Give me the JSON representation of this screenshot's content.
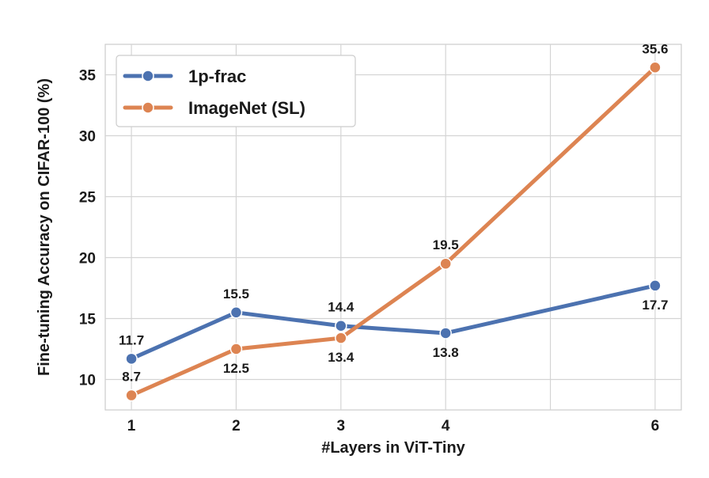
{
  "chart_data": {
    "type": "line",
    "xlabel": "#Layers in ViT-Tiny",
    "ylabel": "Fine-tuning Accuracy on CIFAR-100 (%)",
    "x": [
      1,
      2,
      3,
      4,
      6
    ],
    "xlim": [
      0.75,
      6.25
    ],
    "ylim": [
      7.5,
      37.5
    ],
    "xticks": [
      1,
      2,
      3,
      4,
      6
    ],
    "yticks": [
      10,
      15,
      20,
      25,
      30,
      35
    ],
    "grid": true,
    "legend_position": "top-left",
    "series": [
      {
        "name": "1p-frac",
        "color": "#4c72b0",
        "values": [
          11.7,
          15.5,
          14.4,
          13.8,
          17.7
        ],
        "labels": [
          "11.7",
          "15.5",
          "14.4",
          "13.8",
          "17.7"
        ],
        "label_side": [
          "above",
          "above",
          "above",
          "below",
          "below"
        ]
      },
      {
        "name": "ImageNet (SL)",
        "color": "#dd8452",
        "values": [
          8.7,
          12.5,
          13.4,
          19.5,
          35.6
        ],
        "labels": [
          "8.7",
          "12.5",
          "13.4",
          "19.5",
          "35.6"
        ],
        "label_side": [
          "above",
          "below",
          "below",
          "above",
          "above"
        ]
      }
    ]
  }
}
